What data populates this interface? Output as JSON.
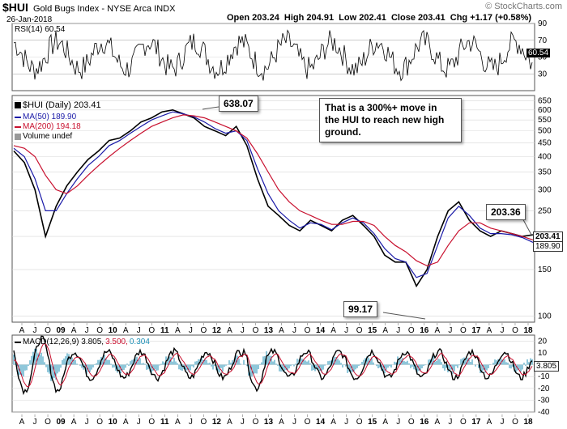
{
  "header": {
    "symbol": "$HUI",
    "name": "Gold Bugs Index - NYSE Arca INDX",
    "date": "26-Jan-2018",
    "ohlc": "Open 203.24  High 204.91  Low 202.41  Close 203.41  Chg +1.17 (+0.58%)",
    "watermark": "© StockCharts.com"
  },
  "rsi": {
    "label": "RSI(14) 60.54",
    "value_box": "60.54",
    "ticks": [
      "90",
      "70",
      "50",
      "30"
    ]
  },
  "price_legend": {
    "main": "$HUI (Daily) 203.41",
    "ma50": "MA(50) 189.90",
    "ma200": "MA(200) 194.18",
    "volume": "Volume undef"
  },
  "annotations": {
    "high": "638.07",
    "low": "99.17",
    "recent": "203.36",
    "note": [
      "That is a 300%+ move in",
      "the HUI to reach new high",
      "ground."
    ],
    "close_box": "203.41",
    "ma_box": "189.90"
  },
  "macd": {
    "label_black": "MACD(12,26,9) 3.805,",
    "label_red": "3.500,",
    "label_blue": "0.304",
    "value_box": "3.805",
    "ticks": [
      "20",
      "10",
      "0",
      "-10",
      "-20",
      "-30",
      "-40"
    ]
  },
  "colors": {
    "ma50": "#1a1aa8",
    "ma200": "#c8102e",
    "histogram": "#1f8fb5",
    "grid": "#d8d8d8"
  },
  "chart_data": {
    "type": "line",
    "title": "$HUI Gold Bugs Index - NYSE Arca INDX",
    "y_scale": "log",
    "y_ticks": [
      650,
      600,
      550,
      500,
      450,
      400,
      350,
      300,
      250,
      200,
      150,
      100
    ],
    "ylim": [
      95,
      680
    ],
    "x_tick_labels": [
      "A",
      "J",
      "O",
      "09",
      "A",
      "J",
      "O",
      "10",
      "A",
      "J",
      "O",
      "11",
      "A",
      "J",
      "O",
      "12",
      "A",
      "J",
      "O",
      "13",
      "A",
      "J",
      "O",
      "14",
      "A",
      "J",
      "O",
      "15",
      "A",
      "J",
      "O",
      "16",
      "A",
      "J",
      "O",
      "17",
      "A",
      "J",
      "O",
      "18"
    ],
    "series": [
      {
        "name": "$HUI (Daily)",
        "values": [
          420,
          380,
          300,
          200,
          260,
          310,
          350,
          390,
          420,
          460,
          470,
          500,
          540,
          560,
          590,
          600,
          580,
          560,
          520,
          500,
          480,
          520,
          440,
          330,
          260,
          240,
          220,
          210,
          230,
          220,
          210,
          230,
          240,
          220,
          200,
          170,
          160,
          160,
          130,
          150,
          200,
          250,
          270,
          230,
          210,
          200,
          210,
          205,
          200,
          203
        ]
      },
      {
        "name": "MA(50)",
        "values": [
          430,
          400,
          330,
          250,
          250,
          290,
          330,
          370,
          400,
          440,
          460,
          490,
          520,
          550,
          570,
          590,
          580,
          565,
          540,
          510,
          490,
          500,
          460,
          360,
          290,
          250,
          230,
          215,
          225,
          222,
          212,
          225,
          235,
          225,
          205,
          180,
          165,
          160,
          140,
          145,
          185,
          235,
          260,
          240,
          215,
          205,
          205,
          203,
          198,
          190
        ]
      },
      {
        "name": "MA(200)",
        "values": [
          440,
          430,
          400,
          340,
          300,
          290,
          310,
          340,
          370,
          400,
          430,
          460,
          490,
          520,
          540,
          560,
          575,
          570,
          560,
          540,
          520,
          500,
          470,
          410,
          350,
          300,
          270,
          250,
          240,
          230,
          222,
          222,
          228,
          228,
          220,
          200,
          185,
          175,
          162,
          155,
          160,
          185,
          210,
          225,
          225,
          215,
          210,
          205,
          200,
          194
        ]
      }
    ],
    "annotations": [
      {
        "label": "638.07",
        "x": "2011-09",
        "y": 638.07
      },
      {
        "label": "99.17",
        "x": "2016-01",
        "y": 99.17
      },
      {
        "label": "203.36",
        "x": "2018-01",
        "y": 203.36
      }
    ],
    "rsi_range": [
      10,
      90
    ],
    "macd_range": [
      -40,
      25
    ]
  }
}
